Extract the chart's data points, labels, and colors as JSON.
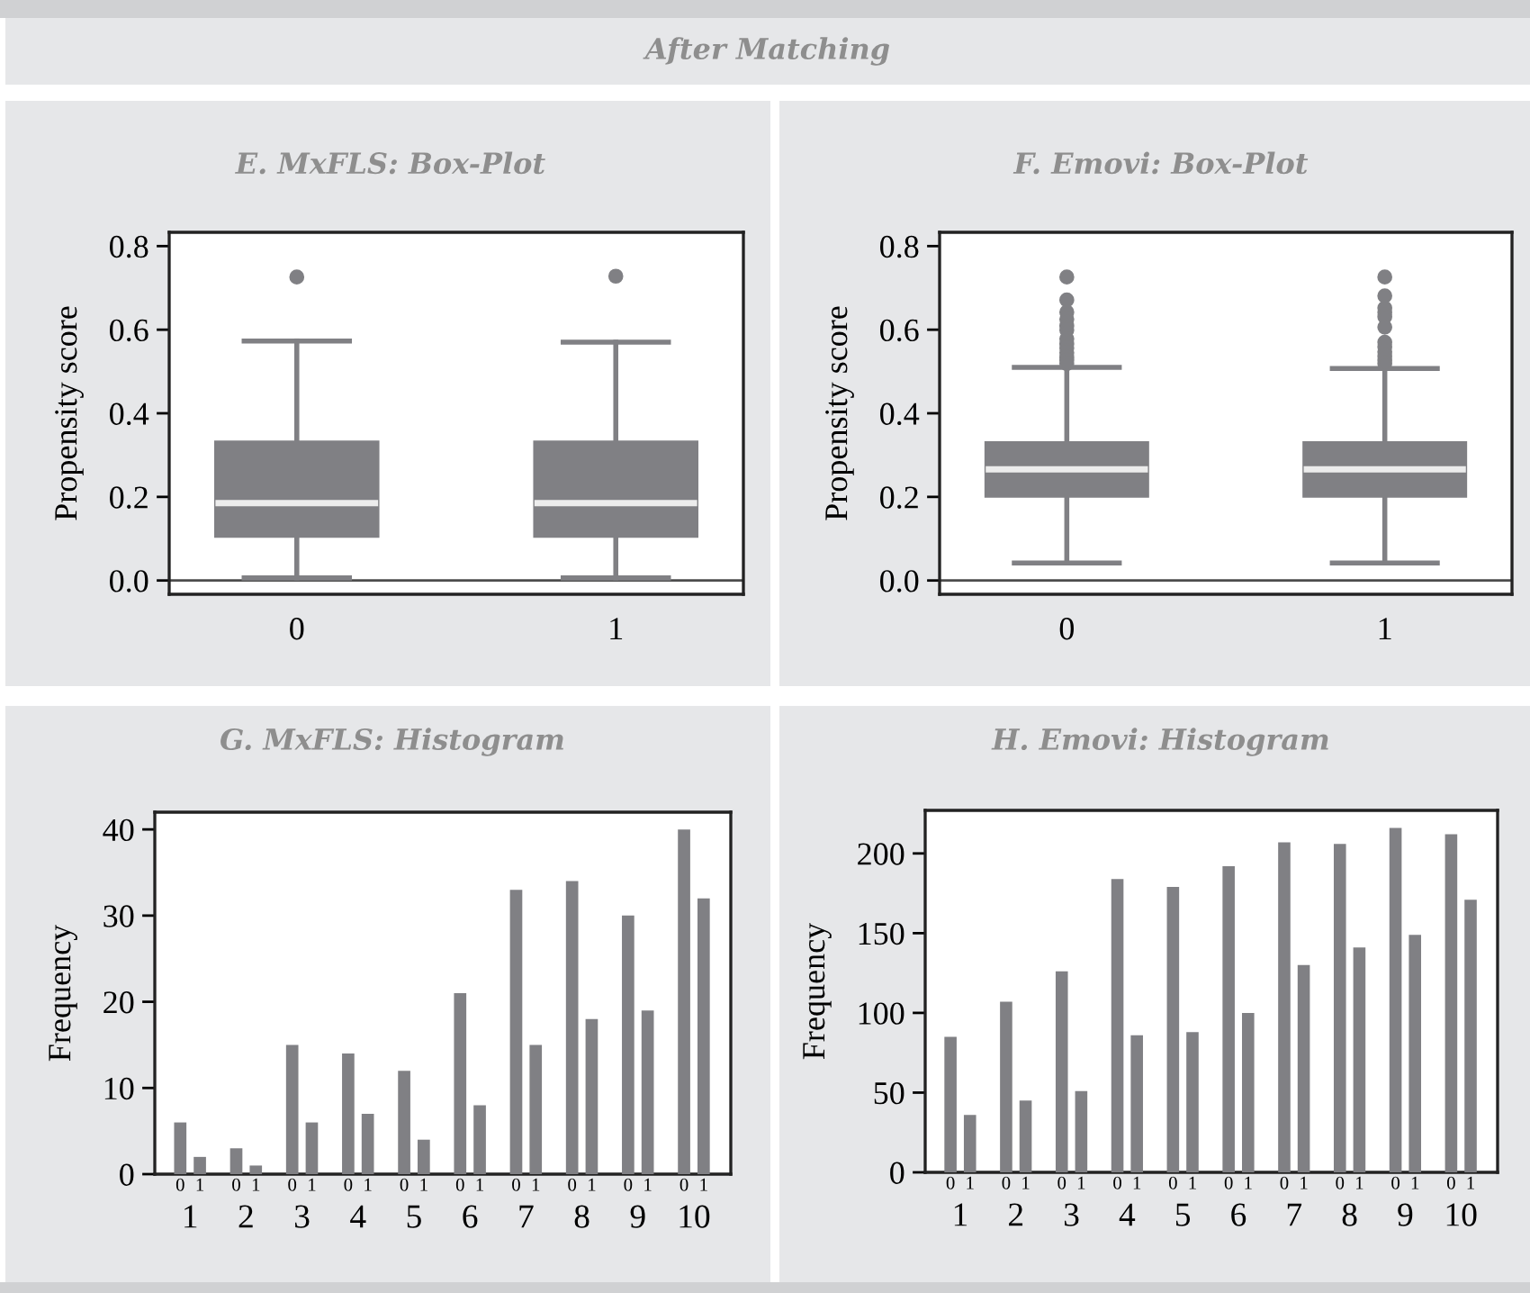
{
  "chart_data": [
    {
      "type": "other",
      "title": "After Matching"
    },
    {
      "type": "box",
      "title": "E. MxFLS: Box-Plot",
      "ylabel": "Propensity score",
      "categories": [
        "0",
        "1"
      ],
      "series": [
        {
          "color": "#808084",
          "boxes": [
            {
              "low": 0.006,
              "q1": 0.105,
              "median": 0.185,
              "q3": 0.332,
              "high": 0.573,
              "outliers": [
                0.726
              ]
            },
            {
              "low": 0.006,
              "q1": 0.105,
              "median": 0.185,
              "q3": 0.332,
              "high": 0.57,
              "outliers": [
                0.728
              ]
            }
          ]
        }
      ],
      "ylim": [
        -0.033,
        0.833
      ],
      "yticks": [
        {
          "value": 0,
          "label": "0.0"
        },
        0.2,
        0.4,
        0.6,
        0.8
      ],
      "ref_lines": [
        {
          "axis": "y",
          "value": 0,
          "color": "#4d4d4d"
        }
      ]
    },
    {
      "type": "box",
      "title": "F. Emovi: Box-Plot",
      "ylabel": "Propensity score",
      "categories": [
        "0",
        "1"
      ],
      "series": [
        {
          "color": "#808084",
          "boxes": [
            {
              "low": 0.042,
              "q1": 0.201,
              "median": 0.266,
              "q3": 0.33,
              "high": 0.51,
              "outliers": [
                0.726,
                0.671,
                0.642,
                0.625,
                0.609,
                0.599,
                0.578,
                0.566,
                0.556,
                0.545,
                0.534,
                0.527,
                0.519
              ]
            },
            {
              "low": 0.042,
              "q1": 0.201,
              "median": 0.266,
              "q3": 0.33,
              "high": 0.507,
              "outliers": [
                0.726,
                0.681,
                0.652,
                0.642,
                0.631,
                0.606,
                0.57,
                0.559,
                0.547,
                0.537,
                0.527,
                0.519
              ]
            }
          ]
        }
      ],
      "ylim": [
        -0.033,
        0.833
      ],
      "yticks": [
        {
          "value": 0,
          "label": "0.0"
        },
        0.2,
        0.4,
        0.6,
        0.8
      ],
      "ref_lines": [
        {
          "axis": "y",
          "value": 0,
          "color": "#4d4d4d"
        }
      ]
    },
    {
      "type": "bar",
      "title": "G. MxFLS: Histogram",
      "ylabel": "Frequency",
      "categories": [
        "1",
        "2",
        "3",
        "4",
        "5",
        "6",
        "7",
        "8",
        "9",
        "10"
      ],
      "series": [
        {
          "name": "0",
          "color": "#808084",
          "values": [
            6,
            3,
            15,
            14,
            12,
            21,
            33,
            34,
            30,
            40
          ]
        },
        {
          "name": "1",
          "color": "#808084",
          "values": [
            2,
            1,
            6,
            7,
            4,
            8,
            15,
            18,
            19,
            32
          ]
        }
      ],
      "ylim": [
        0,
        42
      ],
      "yticks": [
        0,
        10,
        20,
        30,
        40
      ]
    },
    {
      "type": "bar",
      "title": "H. Emovi: Histogram",
      "ylabel": "Frequency",
      "categories": [
        "1",
        "2",
        "3",
        "4",
        "5",
        "6",
        "7",
        "8",
        "9",
        "10"
      ],
      "series": [
        {
          "name": "0",
          "color": "#808084",
          "values": [
            85,
            107,
            126,
            184,
            179,
            192,
            207,
            206,
            216,
            212
          ]
        },
        {
          "name": "1",
          "color": "#808084",
          "values": [
            36,
            45,
            51,
            86,
            88,
            100,
            130,
            141,
            149,
            171
          ]
        }
      ],
      "ylim": [
        0,
        227
      ],
      "yticks": [
        0,
        50,
        100,
        150,
        200
      ]
    }
  ]
}
